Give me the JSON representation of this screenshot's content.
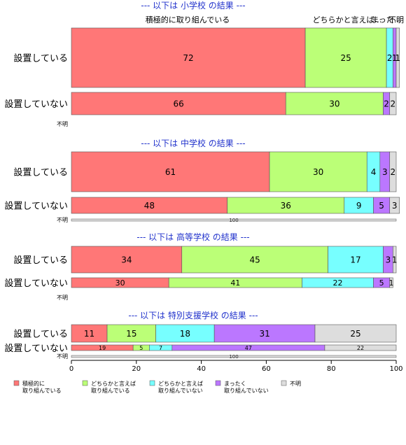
{
  "chart_data": {
    "type": "bar",
    "orientation": "horizontal",
    "stacked": true,
    "percent": true,
    "xlim": [
      0,
      100
    ],
    "xticks": [
      "0",
      "20",
      "40",
      "60",
      "80",
      "100"
    ],
    "top_labels": [
      "積極的に取り組んでいる",
      "どちらかと言えば…",
      "まった…",
      "不明"
    ],
    "series": [
      {
        "name": "積極的に取り組んでいる",
        "legend": [
          "積極的に",
          "取り組んでいる"
        ],
        "color": "#ff7777"
      },
      {
        "name": "どちらかと言えば取り組んでいる",
        "legend": [
          "どちらかと言えば",
          "取り組んでいる"
        ],
        "color": "#bbff77"
      },
      {
        "name": "どちらかと言えば取り組んでいない",
        "legend": [
          "どちらかと言えば",
          "取り組んでいない"
        ],
        "color": "#77ffff"
      },
      {
        "name": "まったく取り組んでいない",
        "legend": [
          "まったく",
          "取り組んでいない"
        ],
        "color": "#bb77ff"
      },
      {
        "name": "不明",
        "legend": [
          "不明"
        ],
        "color": "#dddddd"
      }
    ],
    "groups": [
      {
        "title": "--- 以下は 小学校 の結果 ---",
        "rows": [
          {
            "label": "設置している",
            "values": [
              72,
              25,
              2,
              1,
              1
            ]
          },
          {
            "label": "設置していない",
            "values": [
              66,
              30,
              0,
              2,
              2
            ]
          }
        ],
        "unknown": {
          "label": "不明",
          "value": null
        }
      },
      {
        "title": "--- 以下は 中学校 の結果 ---",
        "rows": [
          {
            "label": "設置している",
            "values": [
              61,
              30,
              4,
              3,
              2
            ]
          },
          {
            "label": "設置していない",
            "values": [
              48,
              36,
              9,
              5,
              3
            ]
          }
        ],
        "unknown": {
          "label": "不明",
          "value": 100,
          "text": "100"
        }
      },
      {
        "title": "--- 以下は 高等学校 の結果 ---",
        "rows": [
          {
            "label": "設置している",
            "values": [
              34,
              45,
              17,
              3,
              1
            ]
          },
          {
            "label": "設置していない",
            "values": [
              30,
              41,
              22,
              5,
              1
            ]
          }
        ],
        "unknown": {
          "label": "不明",
          "value": null
        }
      },
      {
        "title": "--- 以下は 特別支援学校 の結果 ---",
        "rows": [
          {
            "label": "設置している",
            "values": [
              11,
              15,
              18,
              31,
              25
            ]
          },
          {
            "label": "設置していない",
            "values": [
              19,
              5,
              7,
              47,
              22
            ]
          }
        ],
        "unknown": {
          "label": "不明",
          "value": 100,
          "text": "100"
        }
      }
    ]
  }
}
